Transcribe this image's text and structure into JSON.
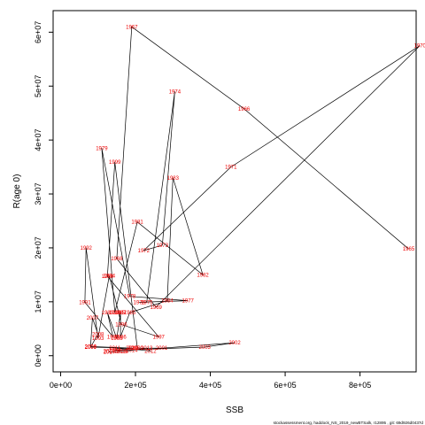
{
  "chart_data": {
    "type": "line",
    "xlabel": "SSB",
    "ylabel": "R(age 0)",
    "xlim": [
      -20000,
      950000
    ],
    "ylim": [
      -3000000,
      64000000
    ],
    "x_ticks": [
      {
        "value": 0,
        "label": "0e+00"
      },
      {
        "value": 200000,
        "label": "2e+05"
      },
      {
        "value": 400000,
        "label": "4e+05"
      },
      {
        "value": 600000,
        "label": "6e+05"
      },
      {
        "value": 800000,
        "label": "8e+05"
      }
    ],
    "y_ticks": [
      {
        "value": 0,
        "label": "0e+00"
      },
      {
        "value": 10000000,
        "label": "1e+07"
      },
      {
        "value": 20000000,
        "label": "2e+07"
      },
      {
        "value": 30000000,
        "label": "3e+07"
      },
      {
        "value": 40000000,
        "label": "4e+07"
      },
      {
        "value": 50000000,
        "label": "5e+07"
      },
      {
        "value": 60000000,
        "label": "6e+07"
      }
    ],
    "grid": false,
    "line_color": "#000000",
    "label_color": "#ee0000",
    "points": [
      {
        "year": "1965",
        "x": 930000,
        "y": 19800000
      },
      {
        "year": "1966",
        "x": 490000,
        "y": 45800000
      },
      {
        "year": "1967",
        "x": 190000,
        "y": 61000000
      },
      {
        "year": "1968",
        "x": 150000,
        "y": 18000000
      },
      {
        "year": "1969",
        "x": 255000,
        "y": 9000000
      },
      {
        "year": "1970",
        "x": 960000,
        "y": 57500000
      },
      {
        "year": "1971",
        "x": 455000,
        "y": 35000000
      },
      {
        "year": "1972",
        "x": 222000,
        "y": 19500000
      },
      {
        "year": "1973",
        "x": 272000,
        "y": 20500000
      },
      {
        "year": "1974",
        "x": 305000,
        "y": 49000000
      },
      {
        "year": "1975",
        "x": 230000,
        "y": 9900000
      },
      {
        "year": "1976",
        "x": 210000,
        "y": 9900000
      },
      {
        "year": "1977",
        "x": 340000,
        "y": 10200000
      },
      {
        "year": "1978",
        "x": 185000,
        "y": 11000000
      },
      {
        "year": "1979",
        "x": 110000,
        "y": 38500000
      },
      {
        "year": "1980",
        "x": 145000,
        "y": 8000000
      },
      {
        "year": "1981",
        "x": 205000,
        "y": 24800000
      },
      {
        "year": "1982",
        "x": 380000,
        "y": 15000000
      },
      {
        "year": "1983",
        "x": 300000,
        "y": 33000000
      },
      {
        "year": "1984",
        "x": 285000,
        "y": 10200000
      },
      {
        "year": "1985",
        "x": 185000,
        "y": 8000000
      },
      {
        "year": "1986",
        "x": 160000,
        "y": 3500000
      },
      {
        "year": "1987",
        "x": 160000,
        "y": 8000000
      },
      {
        "year": "1988",
        "x": 150000,
        "y": 3200000
      },
      {
        "year": "1989",
        "x": 125000,
        "y": 8000000
      },
      {
        "year": "1990",
        "x": 140000,
        "y": 3500000
      },
      {
        "year": "1991",
        "x": 65000,
        "y": 9900000
      },
      {
        "year": "1992",
        "x": 68000,
        "y": 20000000
      },
      {
        "year": "1993",
        "x": 100000,
        "y": 3200000
      },
      {
        "year": "1994",
        "x": 130000,
        "y": 14800000
      },
      {
        "year": "1995",
        "x": 155000,
        "y": 8000000
      },
      {
        "year": "1996",
        "x": 162000,
        "y": 5800000
      },
      {
        "year": "1997",
        "x": 262000,
        "y": 3500000
      },
      {
        "year": "1998",
        "x": 125000,
        "y": 14700000
      },
      {
        "year": "1999",
        "x": 145000,
        "y": 35900000
      },
      {
        "year": "2000",
        "x": 205000,
        "y": 1400000
      },
      {
        "year": "2001",
        "x": 270000,
        "y": 1400000
      },
      {
        "year": "2002",
        "x": 465000,
        "y": 2400000
      },
      {
        "year": "2003",
        "x": 385000,
        "y": 1600000
      },
      {
        "year": "2004",
        "x": 145000,
        "y": 1000000
      },
      {
        "year": "2005",
        "x": 195000,
        "y": 1400000
      },
      {
        "year": "2006",
        "x": 80000,
        "y": 1700000
      },
      {
        "year": "2007",
        "x": 85000,
        "y": 7000000
      },
      {
        "year": "2008",
        "x": 100000,
        "y": 4000000
      },
      {
        "year": "2009",
        "x": 80000,
        "y": 1600000
      },
      {
        "year": "2010",
        "x": 190000,
        "y": 1400000
      },
      {
        "year": "2011",
        "x": 145000,
        "y": 1400000
      },
      {
        "year": "2012",
        "x": 240000,
        "y": 900000
      },
      {
        "year": "2013",
        "x": 230000,
        "y": 1400000
      },
      {
        "year": "2014",
        "x": 190000,
        "y": 1000000
      },
      {
        "year": "2015",
        "x": 165000,
        "y": 800000
      },
      {
        "year": "2016",
        "x": 160000,
        "y": 800000
      },
      {
        "year": "2017",
        "x": 130000,
        "y": 700000
      },
      {
        "year": "2018",
        "x": 130000,
        "y": 900000
      }
    ]
  },
  "footer": {
    "caption": "stockassessment.org, haddock_NS_2019_newBTSalk, r12895 , git: 69d926d0437d"
  }
}
